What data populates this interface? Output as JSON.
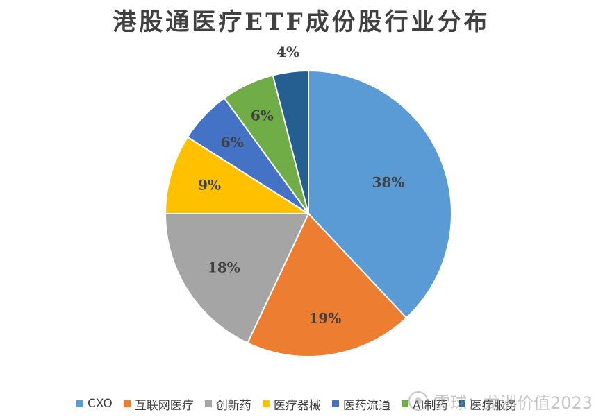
{
  "chart_data": {
    "type": "pie",
    "title": "港股通医疗ETF成份股行业分布",
    "slices": [
      {
        "label": "CXO",
        "value": 38,
        "display": "38%",
        "color": "#5B9BD5"
      },
      {
        "label": "互联网医疗",
        "value": 19,
        "display": "19%",
        "color": "#ED7D31"
      },
      {
        "label": "创新药",
        "value": 18,
        "display": "18%",
        "color": "#A5A5A5"
      },
      {
        "label": "医疗器械",
        "value": 9,
        "display": "9%",
        "color": "#FFC000"
      },
      {
        "label": "医药流通",
        "value": 6,
        "display": "6%",
        "color": "#4472C4"
      },
      {
        "label": "AI制药",
        "value": 6,
        "display": "6%",
        "color": "#70AD47"
      },
      {
        "label": "医疗服务",
        "value": 4,
        "display": "4%",
        "color": "#255E91"
      }
    ],
    "legend_position": "bottom"
  },
  "watermark": {
    "text": "雪球：龙洲价值2023"
  }
}
